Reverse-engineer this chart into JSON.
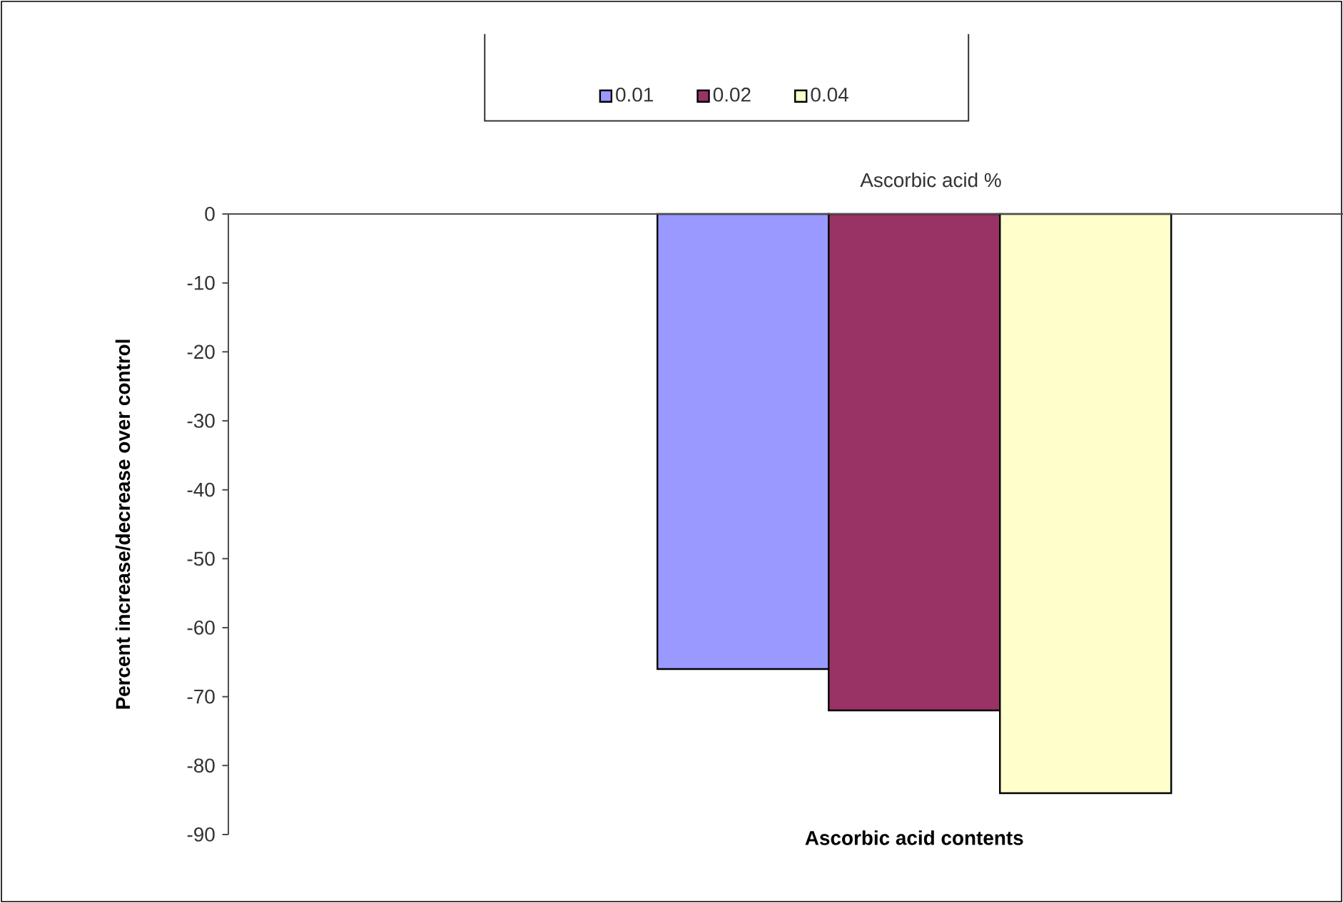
{
  "chart_data": {
    "type": "bar",
    "categories": [
      "Ascorbic acid contents"
    ],
    "series": [
      {
        "name": "0.01",
        "color": "#9999ff",
        "values": [
          -66
        ]
      },
      {
        "name": "0.02",
        "color": "#993366",
        "values": [
          -72
        ]
      },
      {
        "name": "0.04",
        "color": "#ffffcc",
        "values": [
          -84
        ]
      }
    ],
    "ylabel": "Percent increase/decrease over control",
    "legend_title": "Ascorbic acid %",
    "legend": "top",
    "ylim": [
      -90,
      0
    ],
    "yticks": [
      0,
      -10,
      -20,
      -30,
      -40,
      -50,
      -60,
      -70,
      -80,
      -90
    ]
  }
}
